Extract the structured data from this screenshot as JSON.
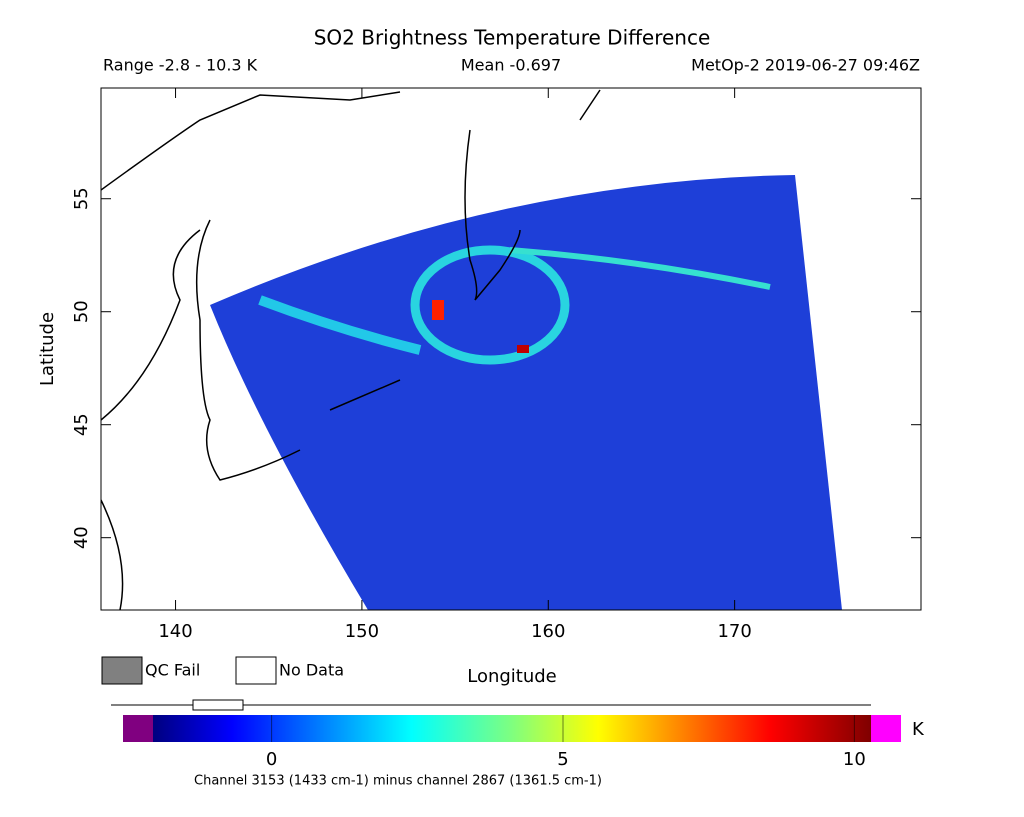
{
  "chart_data": {
    "type": "map",
    "title": "SO2 Brightness Temperature Difference",
    "subtitle_left": "Range -2.8 - 10.3 K",
    "subtitle_center": "Mean -0.697",
    "subtitle_right": "MetOp-2 2019-06-27 09:46Z",
    "xlabel": "Longitude",
    "ylabel": "Latitude",
    "xlim": [
      136,
      180
    ],
    "xticks": [
      140,
      150,
      160,
      170
    ],
    "ylim": [
      36.8,
      59.9
    ],
    "yticks": [
      40,
      45,
      50,
      55
    ],
    "legend": [
      {
        "name": "QC Fail",
        "color": "#808080"
      },
      {
        "name": "No Data",
        "color": "#ffffff"
      }
    ],
    "colorbar": {
      "lim": [
        -2.55,
        10.8
      ],
      "ticks": [
        0,
        5,
        10
      ],
      "unit": "K"
    },
    "footnote": "Channel 3153 (1433 cm-1) minus channel 2867 (1361.5 cm-1)"
  }
}
